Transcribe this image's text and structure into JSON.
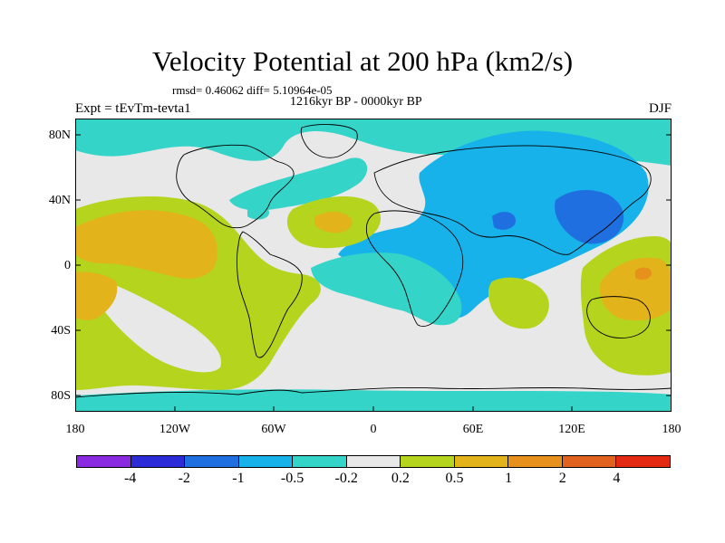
{
  "figure": {
    "title": "Velocity Potential at 200 hPa (km2/s)",
    "stats": "rmsd= 0.46062 diff= 5.10964e-05",
    "period": "1216kyr BP - 0000kyr BP",
    "experiment": "Expt = tEvTm-tevta1",
    "season": "DJF"
  },
  "axes": {
    "y_ticks": [
      "80N",
      "40N",
      "0",
      "40S",
      "80S"
    ],
    "x_ticks": [
      "180",
      "120W",
      "60W",
      "0",
      "60E",
      "120E",
      "180"
    ]
  },
  "colorbar": {
    "colors": [
      "#8a2be2",
      "#2b2bd8",
      "#1f6fe0",
      "#17b2ea",
      "#34d4c8",
      "#e8e8e8",
      "#b5d41e",
      "#e2b31a",
      "#e8901c",
      "#e0621e",
      "#e42a12"
    ],
    "labels": [
      "-4",
      "-2",
      "-1",
      "-0.5",
      "-0.2",
      "0.2",
      "0.5",
      "1",
      "2",
      "4"
    ]
  },
  "map": {
    "projection": "cylindrical equidistant",
    "lon_range": [
      -180,
      180
    ],
    "lat_range": [
      -90,
      90
    ],
    "field_colors": {
      "teal": "#34d4c8",
      "cyan": "#17b2ea",
      "blue": "#1f6fe0",
      "grey": "#e8e8e8",
      "green": "#b5d41e",
      "orange": "#e2b31a",
      "darkorange": "#e8901c"
    }
  }
}
